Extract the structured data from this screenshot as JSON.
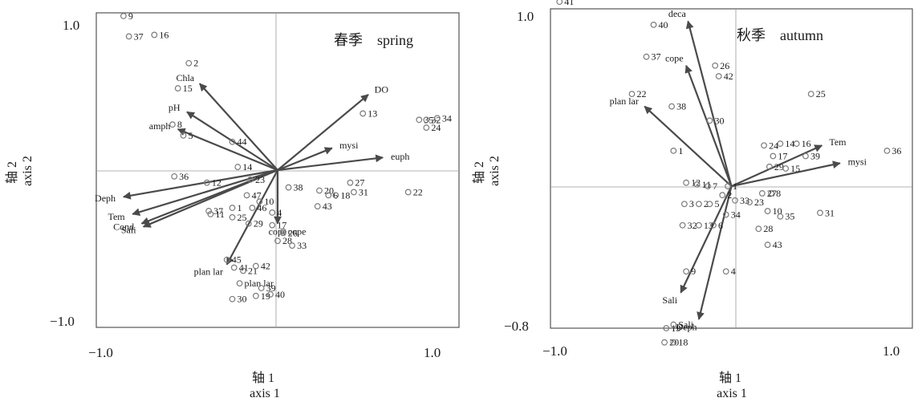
{
  "chart_data": [
    {
      "type": "scatter",
      "title": "春季　spring",
      "xlabel": "轴 1\naxis 1",
      "ylabel": "轴 2\naxis 2",
      "xlim": [
        -1.0,
        1.0
      ],
      "ylim": [
        -1.0,
        1.0
      ],
      "xticks": [
        -1.0,
        1.0
      ],
      "yticks": [
        -1.0,
        1.0
      ],
      "tick_labels": {
        "x": [
          "−1.0",
          "1.0"
        ],
        "y": [
          "−1.0",
          "1.0"
        ]
      },
      "grid": false,
      "zero_lines": true,
      "sites": [
        {
          "label": "9",
          "x": -0.85,
          "y": 0.98
        },
        {
          "label": "37",
          "x": -0.82,
          "y": 0.85
        },
        {
          "label": "16",
          "x": -0.68,
          "y": 0.86
        },
        {
          "label": "2",
          "x": -0.49,
          "y": 0.68
        },
        {
          "label": "15",
          "x": -0.55,
          "y": 0.52
        },
        {
          "label": "8",
          "x": -0.58,
          "y": 0.29
        },
        {
          "label": "5",
          "x": -0.52,
          "y": 0.22
        },
        {
          "label": "44",
          "x": -0.25,
          "y": 0.18
        },
        {
          "label": "14",
          "x": -0.22,
          "y": 0.02
        },
        {
          "label": "36",
          "x": -0.57,
          "y": -0.04
        },
        {
          "label": "12",
          "x": -0.39,
          "y": -0.08
        },
        {
          "label": "23",
          "x": -0.15,
          "y": -0.06
        },
        {
          "label": "47",
          "x": -0.17,
          "y": -0.16
        },
        {
          "label": "1",
          "x": -0.25,
          "y": -0.24
        },
        {
          "label": "10",
          "x": -0.1,
          "y": -0.2
        },
        {
          "label": "46",
          "x": -0.14,
          "y": -0.24
        },
        {
          "label": "37",
          "x": -0.38,
          "y": -0.26
        },
        {
          "label": "11",
          "x": -0.37,
          "y": -0.28
        },
        {
          "label": "25",
          "x": -0.25,
          "y": -0.3
        },
        {
          "label": "4",
          "x": -0.03,
          "y": -0.27
        },
        {
          "label": "29",
          "x": -0.16,
          "y": -0.34
        },
        {
          "label": "17",
          "x": -0.03,
          "y": -0.35
        },
        {
          "label": "26",
          "x": 0.03,
          "y": -0.4
        },
        {
          "label": "45",
          "x": -0.28,
          "y": -0.57
        },
        {
          "label": "41",
          "x": -0.24,
          "y": -0.62
        },
        {
          "label": "21",
          "x": -0.19,
          "y": -0.64
        },
        {
          "label": "42",
          "x": -0.12,
          "y": -0.61
        },
        {
          "label": "plan lar",
          "x": -0.21,
          "y": -0.72
        },
        {
          "label": "39",
          "x": -0.09,
          "y": -0.75
        },
        {
          "label": "19",
          "x": -0.12,
          "y": -0.8
        },
        {
          "label": "30",
          "x": -0.25,
          "y": -0.82
        },
        {
          "label": "40",
          "x": -0.04,
          "y": -0.79
        },
        {
          "label": "28",
          "x": 0.0,
          "y": -0.45
        },
        {
          "label": "33",
          "x": 0.08,
          "y": -0.48
        },
        {
          "label": "cope",
          "x": 0.03,
          "y": -0.39
        },
        {
          "label": "38",
          "x": 0.06,
          "y": -0.11
        },
        {
          "label": "20",
          "x": 0.23,
          "y": -0.13
        },
        {
          "label": "6",
          "x": 0.28,
          "y": -0.16
        },
        {
          "label": "18",
          "x": 0.32,
          "y": -0.16
        },
        {
          "label": "27",
          "x": 0.4,
          "y": -0.08
        },
        {
          "label": "31",
          "x": 0.42,
          "y": -0.14
        },
        {
          "label": "43",
          "x": 0.22,
          "y": -0.23
        },
        {
          "label": "13",
          "x": 0.47,
          "y": 0.36
        },
        {
          "label": "35",
          "x": 0.78,
          "y": 0.32
        },
        {
          "label": "32",
          "x": 0.82,
          "y": 0.32
        },
        {
          "label": "34",
          "x": 0.88,
          "y": 0.33
        },
        {
          "label": "24",
          "x": 0.82,
          "y": 0.27
        },
        {
          "label": "22",
          "x": 0.72,
          "y": -0.14
        }
      ],
      "vectors": [
        {
          "label": "Chla",
          "x": -0.43,
          "y": 0.55
        },
        {
          "label": "pH",
          "x": -0.5,
          "y": 0.37
        },
        {
          "label": "amph",
          "x": -0.55,
          "y": 0.26
        },
        {
          "label": "DO",
          "x": 0.5,
          "y": 0.48
        },
        {
          "label": "mysi",
          "x": 0.3,
          "y": 0.14
        },
        {
          "label": "euph",
          "x": 0.58,
          "y": 0.08
        },
        {
          "label": "Deph",
          "x": -0.85,
          "y": -0.17
        },
        {
          "label": "Tem",
          "x": -0.8,
          "y": -0.28
        },
        {
          "label": "Cond",
          "x": -0.75,
          "y": -0.34
        },
        {
          "label": "Sali",
          "x": -0.74,
          "y": -0.36
        },
        {
          "label": "cope",
          "x": 0.0,
          "y": -0.34
        },
        {
          "label": "plan lar",
          "x": -0.28,
          "y": -0.6
        }
      ]
    },
    {
      "type": "scatter",
      "title": "秋季　autumn",
      "xlabel": "轴 1\naxis 1",
      "ylabel": "轴 2\naxis 2",
      "xlim": [
        -1.0,
        1.0
      ],
      "ylim": [
        -0.8,
        1.0
      ],
      "xticks": [
        -1.0,
        1.0
      ],
      "yticks": [
        -0.8,
        1.0
      ],
      "tick_labels": {
        "x": [
          "−1.0",
          "1.0"
        ],
        "y": [
          "−0.8",
          "1.0"
        ]
      },
      "grid": false,
      "zero_lines": true,
      "sites": [
        {
          "label": "41",
          "x": -0.95,
          "y": 1.04
        },
        {
          "label": "40",
          "x": -0.43,
          "y": 0.91
        },
        {
          "label": "37",
          "x": -0.47,
          "y": 0.73
        },
        {
          "label": "26",
          "x": -0.09,
          "y": 0.68
        },
        {
          "label": "42",
          "x": -0.07,
          "y": 0.62
        },
        {
          "label": "38",
          "x": -0.33,
          "y": 0.45
        },
        {
          "label": "22",
          "x": -0.55,
          "y": 0.52
        },
        {
          "label": "30",
          "x": -0.12,
          "y": 0.37
        },
        {
          "label": "1",
          "x": -0.32,
          "y": 0.2
        },
        {
          "label": "12",
          "x": -0.25,
          "y": 0.02
        },
        {
          "label": "11",
          "x": -0.19,
          "y": 0.01
        },
        {
          "label": "7",
          "x": -0.13,
          "y": 0.0
        },
        {
          "label": "2",
          "x": -0.05,
          "y": -0.05
        },
        {
          "label": "1",
          "x": -0.02,
          "y": 0.0
        },
        {
          "label": "3",
          "x": -0.26,
          "y": -0.1
        },
        {
          "label": "2",
          "x": -0.18,
          "y": -0.1
        },
        {
          "label": "5",
          "x": -0.12,
          "y": -0.1
        },
        {
          "label": "33",
          "x": 0.02,
          "y": -0.08
        },
        {
          "label": "34",
          "x": -0.03,
          "y": -0.16
        },
        {
          "label": "32",
          "x": -0.27,
          "y": -0.22
        },
        {
          "label": "13",
          "x": -0.18,
          "y": -0.22
        },
        {
          "label": "6",
          "x": -0.1,
          "y": -0.22
        },
        {
          "label": "9",
          "x": -0.25,
          "y": -0.48
        },
        {
          "label": "4",
          "x": -0.03,
          "y": -0.48
        },
        {
          "label": "19",
          "x": -0.36,
          "y": -0.8
        },
        {
          "label": "Sali",
          "x": -0.32,
          "y": -0.78
        },
        {
          "label": "20",
          "x": -0.37,
          "y": -0.88
        },
        {
          "label": "18",
          "x": -0.32,
          "y": -0.88
        },
        {
          "label": "25",
          "x": 0.44,
          "y": 0.52
        },
        {
          "label": "24",
          "x": 0.18,
          "y": 0.23
        },
        {
          "label": "14",
          "x": 0.27,
          "y": 0.24
        },
        {
          "label": "16",
          "x": 0.36,
          "y": 0.24
        },
        {
          "label": "17",
          "x": 0.23,
          "y": 0.17
        },
        {
          "label": "39",
          "x": 0.41,
          "y": 0.17
        },
        {
          "label": "29",
          "x": 0.21,
          "y": 0.11
        },
        {
          "label": "15",
          "x": 0.3,
          "y": 0.1
        },
        {
          "label": "8",
          "x": 0.22,
          "y": -0.04
        },
        {
          "label": "27",
          "x": 0.17,
          "y": -0.04
        },
        {
          "label": "23",
          "x": 0.1,
          "y": -0.09
        },
        {
          "label": "10",
          "x": 0.2,
          "y": -0.14
        },
        {
          "label": "35",
          "x": 0.27,
          "y": -0.17
        },
        {
          "label": "31",
          "x": 0.49,
          "y": -0.15
        },
        {
          "label": "28",
          "x": 0.15,
          "y": -0.24
        },
        {
          "label": "43",
          "x": 0.2,
          "y": -0.33
        },
        {
          "label": "36",
          "x": 0.86,
          "y": 0.2
        }
      ],
      "vectors": [
        {
          "label": "deca",
          "x": -0.24,
          "y": 0.93
        },
        {
          "label": "cope",
          "x": -0.25,
          "y": 0.68
        },
        {
          "label": "plan lar",
          "x": -0.48,
          "y": 0.45
        },
        {
          "label": "Tem",
          "x": 0.5,
          "y": 0.23
        },
        {
          "label": "mysi",
          "x": 0.6,
          "y": 0.13
        },
        {
          "label": "Sali",
          "x": -0.28,
          "y": -0.6
        },
        {
          "label": "Deph",
          "x": -0.18,
          "y": -0.75
        }
      ]
    }
  ]
}
